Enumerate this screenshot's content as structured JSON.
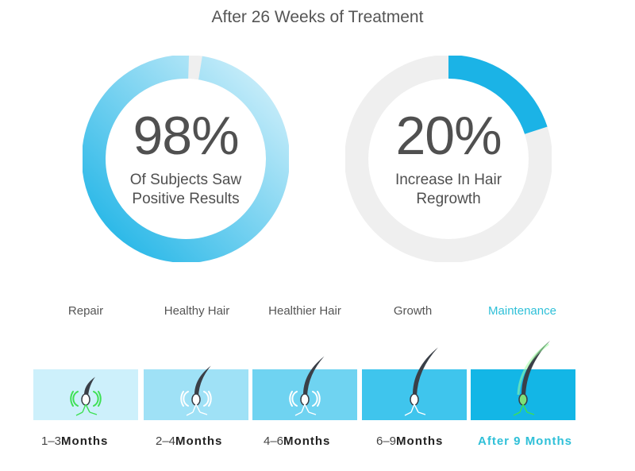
{
  "title": "After 26 Weeks of Treatment",
  "colors": {
    "ring_start": "#1bb3e6",
    "ring_end": "#d5f1fb",
    "ring_track": "#efefef",
    "accent": "#2fc0d8",
    "hair": "#3a3f47",
    "follicle_green": "#3ee053"
  },
  "chart_data": [
    {
      "type": "pie",
      "value": 98,
      "value_label": "98%",
      "caption": [
        "Of Subjects Saw",
        "Positive Results"
      ]
    },
    {
      "type": "pie",
      "value": 20,
      "value_label": "20%",
      "caption": [
        "Increase In Hair",
        "Regrowth"
      ]
    }
  ],
  "stages": [
    {
      "label": "Repair",
      "period_num": "1–3",
      "period_unit": "Months",
      "panel_color": "#cdf0fb",
      "hair_size": 0.35,
      "highlight": false
    },
    {
      "label": "Healthy Hair",
      "period_num": "2–4",
      "period_unit": "Months",
      "panel_color": "#9fe1f6",
      "hair_size": 0.55,
      "highlight": false
    },
    {
      "label": "Healthier Hair",
      "period_num": "4–6",
      "period_unit": "Months",
      "panel_color": "#6fd3f1",
      "hair_size": 0.72,
      "highlight": false
    },
    {
      "label": "Growth",
      "period_num": "6–9",
      "period_unit": "Months",
      "panel_color": "#3fc5ed",
      "hair_size": 0.88,
      "highlight": false
    },
    {
      "label": "Maintenance",
      "period_num": "After 9",
      "period_unit": "Months",
      "panel_color": "#13b6e6",
      "hair_size": 1.0,
      "highlight": true
    }
  ]
}
